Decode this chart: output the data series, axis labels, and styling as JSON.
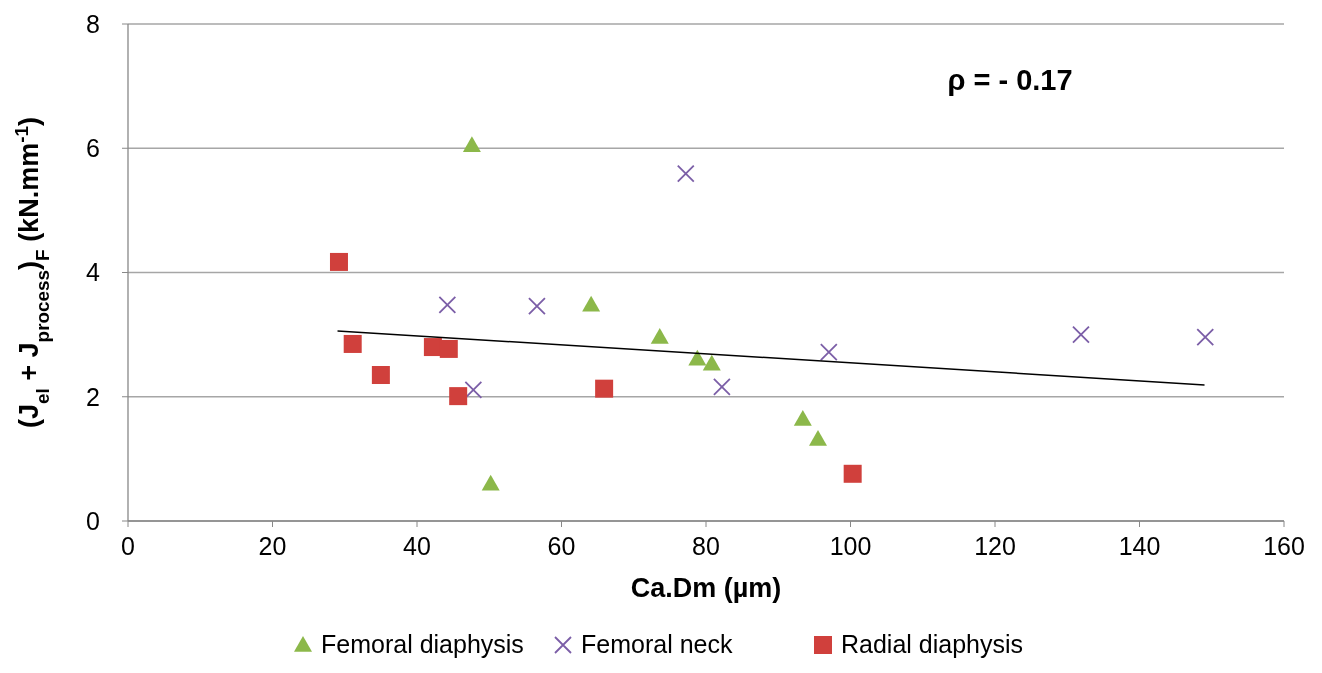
{
  "chart_data": {
    "type": "scatter",
    "xlabel": "Ca.Dm (µm)",
    "ylabel": "(J$_{el}$ + J$_{process}$)$_{F}$ (kN.mm$^{-1}$)",
    "xlim": [
      0,
      160
    ],
    "xticks": [
      0,
      20,
      40,
      60,
      80,
      100,
      120,
      140,
      160
    ],
    "ylim": [
      0,
      8
    ],
    "yticks": [
      0,
      2,
      4,
      6,
      8
    ],
    "grid": "y",
    "legend": "bottom",
    "annotations": [
      "ρ = - 0.17"
    ],
    "series": [
      {
        "name": "Femoral diaphysis",
        "color": "#8cb84a",
        "marker": "triangle",
        "x": [
          47.6,
          64.1,
          73.6,
          78.8,
          80.8,
          93.4,
          95.5,
          50.2
        ],
        "values": [
          6.05,
          3.48,
          2.96,
          2.61,
          2.53,
          1.64,
          1.32,
          0.6
        ]
      },
      {
        "name": "Femoral neck",
        "color": "#7b5ea7",
        "marker": "cross",
        "x": [
          44.2,
          56.6,
          77.2,
          47.8,
          82.2,
          97.0,
          131.9,
          149.1
        ],
        "values": [
          3.48,
          3.46,
          5.59,
          2.11,
          2.16,
          2.72,
          3.0,
          2.96
        ]
      },
      {
        "name": "Radial diaphysis",
        "color": "#d0403c",
        "marker": "square",
        "x": [
          29.2,
          31.1,
          35.0,
          42.2,
          44.4,
          45.7,
          65.9,
          100.3
        ],
        "values": [
          4.17,
          2.85,
          2.35,
          2.8,
          2.77,
          2.01,
          2.13,
          0.76
        ]
      },
      {
        "type": "line",
        "color": "#000000",
        "marker": "none",
        "line_style": "solid",
        "x": [
          29,
          149
        ],
        "values": [
          3.06,
          2.19
        ]
      }
    ]
  }
}
